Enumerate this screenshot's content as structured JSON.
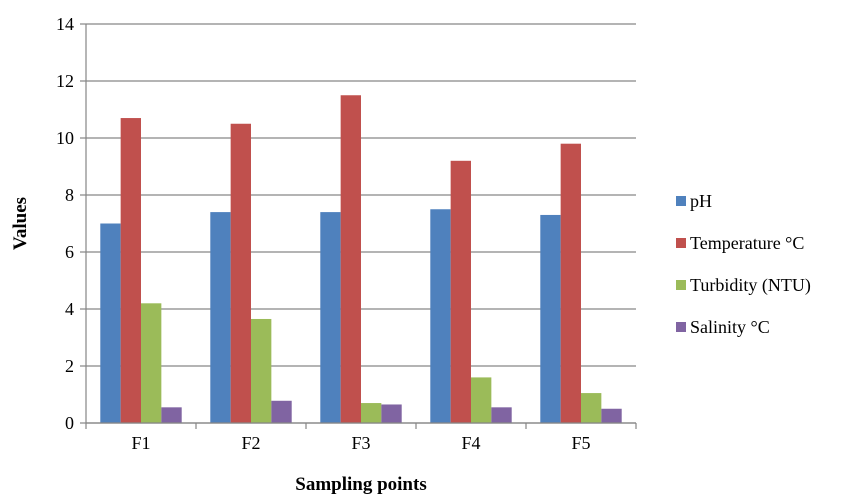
{
  "chart_data": {
    "type": "bar",
    "title": "",
    "xlabel": "Sampling points",
    "ylabel": "Values",
    "ylim": [
      0,
      14
    ],
    "ytick_step": 2,
    "grid": true,
    "legend_position": "right",
    "categories": [
      "F1",
      "F2",
      "F3",
      "F4",
      "F5"
    ],
    "series": [
      {
        "name": "pH",
        "color": "#4f81bd",
        "values": [
          7.0,
          7.4,
          7.4,
          7.5,
          7.3
        ]
      },
      {
        "name": "Temperature °C",
        "color": "#c0504d",
        "values": [
          10.7,
          10.5,
          11.5,
          9.2,
          9.8
        ]
      },
      {
        "name": "Turbidity (NTU)",
        "color": "#9bbb59",
        "values": [
          4.2,
          3.65,
          0.7,
          1.6,
          1.05
        ]
      },
      {
        "name": "Salinity °C",
        "color": "#8064a2",
        "values": [
          0.55,
          0.78,
          0.65,
          0.55,
          0.5
        ]
      }
    ]
  }
}
